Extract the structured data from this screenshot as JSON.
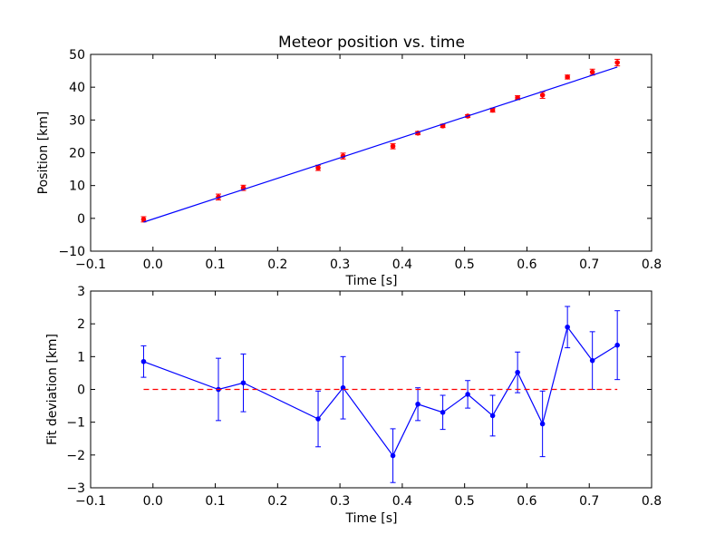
{
  "chart_data": [
    {
      "type": "scatter",
      "title": "Meteor position vs. time",
      "xlabel": "Time [s]",
      "ylabel": "Position [km]",
      "xlim": [
        -0.1,
        0.8
      ],
      "ylim": [
        -10,
        50
      ],
      "x_ticks": [
        "−0.1",
        "0.0",
        "0.1",
        "0.2",
        "0.3",
        "0.4",
        "0.5",
        "0.6",
        "0.7",
        "0.8"
      ],
      "y_ticks": [
        "−10",
        "0",
        "10",
        "20",
        "30",
        "40",
        "50"
      ],
      "x_tick_values": [
        -0.1,
        0.0,
        0.1,
        0.2,
        0.3,
        0.4,
        0.5,
        0.6,
        0.7,
        0.8
      ],
      "y_tick_values": [
        -10,
        0,
        10,
        20,
        30,
        40,
        50
      ],
      "grid": false,
      "series": [
        {
          "kind": "errorbar-points",
          "color": "#ff0000",
          "x": [
            -0.015,
            0.105,
            0.145,
            0.265,
            0.305,
            0.385,
            0.425,
            0.465,
            0.505,
            0.545,
            0.585,
            0.625,
            0.665,
            0.705,
            0.745
          ],
          "y": [
            -0.3,
            6.5,
            9.3,
            15.4,
            19.0,
            22.0,
            26.0,
            28.2,
            31.2,
            33.0,
            36.8,
            37.6,
            43.1,
            44.6,
            47.5
          ],
          "yerr": [
            0.8,
            0.9,
            0.8,
            0.8,
            0.9,
            0.8,
            0.5,
            0.5,
            0.4,
            0.6,
            0.6,
            1.0,
            0.6,
            0.9,
            1.0
          ]
        },
        {
          "kind": "fit-line",
          "color": "#0000ff",
          "x": [
            -0.015,
            0.745
          ],
          "y": [
            -1.15,
            46.15
          ]
        }
      ]
    },
    {
      "type": "line",
      "title": "",
      "xlabel": "Time [s]",
      "ylabel": "Fit deviation [km]",
      "xlim": [
        -0.1,
        0.8
      ],
      "ylim": [
        -3,
        3
      ],
      "x_ticks": [
        "−0.1",
        "0.0",
        "0.1",
        "0.2",
        "0.3",
        "0.4",
        "0.5",
        "0.6",
        "0.7",
        "0.8"
      ],
      "y_ticks": [
        "−3",
        "−2",
        "−1",
        "0",
        "1",
        "2",
        "3"
      ],
      "x_tick_values": [
        -0.1,
        0.0,
        0.1,
        0.2,
        0.3,
        0.4,
        0.5,
        0.6,
        0.7,
        0.8
      ],
      "y_tick_values": [
        -3,
        -2,
        -1,
        0,
        1,
        2,
        3
      ],
      "grid": false,
      "series": [
        {
          "kind": "errorbar-line",
          "color": "#0000ff",
          "x": [
            -0.015,
            0.105,
            0.145,
            0.265,
            0.305,
            0.385,
            0.425,
            0.465,
            0.505,
            0.545,
            0.585,
            0.625,
            0.665,
            0.705,
            0.745
          ],
          "y": [
            0.85,
            0.0,
            0.2,
            -0.9,
            0.05,
            -2.02,
            -0.45,
            -0.7,
            -0.15,
            -0.8,
            0.52,
            -1.05,
            1.9,
            0.88,
            1.35
          ],
          "yerr": [
            0.48,
            0.95,
            0.88,
            0.85,
            0.95,
            0.82,
            0.5,
            0.52,
            0.42,
            0.62,
            0.62,
            1.0,
            0.63,
            0.88,
            1.05
          ]
        },
        {
          "kind": "zero-line",
          "color": "#ff0000",
          "x": [
            -0.015,
            0.745
          ],
          "y": [
            0,
            0
          ]
        }
      ]
    }
  ]
}
